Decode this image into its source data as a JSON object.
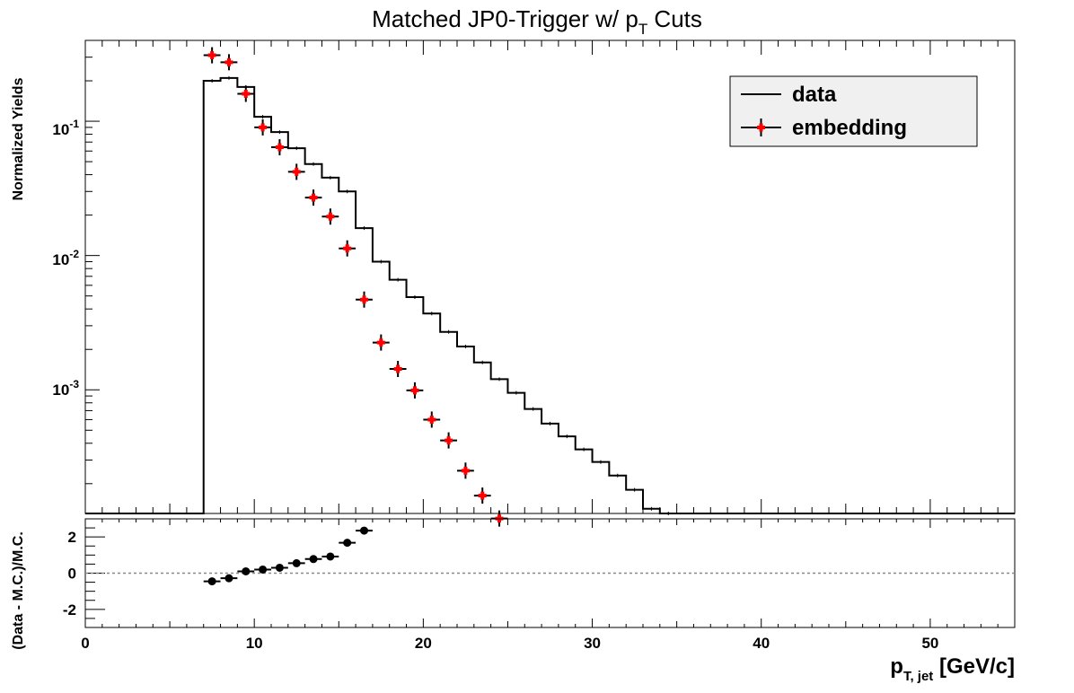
{
  "chart_data": [
    {
      "type": "line",
      "title": "Matched JP0-Trigger w/ p",
      "title_sub": "T",
      "title_tail": " Cuts",
      "ylabel": "Normalized Yields",
      "yscale": "log",
      "ylim": [
        0.00012,
        0.4
      ],
      "xlim": [
        0,
        55
      ],
      "ytick_labels": [
        {
          "value": 0.1,
          "base": "10",
          "exp": "-1"
        },
        {
          "value": 0.01,
          "base": "10",
          "exp": "-2"
        },
        {
          "value": 0.001,
          "base": "10",
          "exp": "-3"
        }
      ],
      "legend": {
        "placement": "top-right",
        "background": "#f0f0f0",
        "entries": [
          {
            "label": "data",
            "style": "line"
          },
          {
            "label": "embedding",
            "style": "marker"
          }
        ]
      },
      "series": [
        {
          "name": "data",
          "kind": "histogram",
          "color": "#000000",
          "bin_width": 1,
          "bin_low": [
            0,
            1,
            2,
            3,
            4,
            5,
            6,
            7,
            8,
            9,
            10,
            11,
            12,
            13,
            14,
            15,
            16,
            17,
            18,
            19,
            20,
            21,
            22,
            23,
            24,
            25,
            26,
            27,
            28,
            29,
            30,
            31,
            32,
            33,
            34,
            35,
            36,
            37,
            38,
            39,
            40,
            41,
            42,
            43,
            44,
            45,
            46,
            47,
            48,
            49,
            50,
            51,
            52,
            53,
            54
          ],
          "values": [
            0,
            0,
            0,
            0,
            0,
            0,
            0,
            0.2,
            0.21,
            0.18,
            0.108,
            0.083,
            0.063,
            0.048,
            0.038,
            0.03,
            0.016,
            0.009,
            0.0066,
            0.0049,
            0.0037,
            0.0027,
            0.0021,
            0.0016,
            0.0012,
            0.00095,
            0.00072,
            0.00056,
            0.00045,
            0.00036,
            0.00029,
            0.00023,
            0.00018,
            0.00013,
            0.00012,
            0,
            0,
            0,
            0,
            0,
            0,
            0,
            0,
            0,
            0,
            0,
            0,
            0,
            0,
            0,
            0,
            0,
            0,
            0,
            0
          ]
        },
        {
          "name": "embedding",
          "kind": "points",
          "color": "#ff0000",
          "x": [
            7.5,
            8.5,
            9.5,
            10.5,
            11.5,
            12.5,
            13.5,
            14.5,
            15.5,
            16.5,
            17.5,
            18.5,
            19.5,
            20.5,
            21.5,
            22.5,
            23.5,
            24.5
          ],
          "y": [
            0.31,
            0.275,
            0.16,
            0.09,
            0.064,
            0.042,
            0.027,
            0.0195,
            0.0113,
            0.0047,
            0.00225,
            0.00143,
            0.00099,
            0.0006,
            0.00042,
            0.00025,
            0.000163,
            0.00011
          ]
        }
      ]
    },
    {
      "type": "scatter",
      "ylabel": "(Data - M.C.)/M.C.",
      "xlabel_main": "p",
      "xlabel_sub": "T, jet",
      "xlabel_tail": " [GeV/c]",
      "xlim": [
        0,
        55
      ],
      "ylim": [
        -3,
        3
      ],
      "xtick_labels": [
        "0",
        "10",
        "20",
        "30",
        "40",
        "50"
      ],
      "xtick_values": [
        0,
        10,
        20,
        30,
        40,
        50
      ],
      "ytick_labels": [
        "2",
        "0",
        "-2"
      ],
      "ytick_values": [
        2,
        0,
        -2
      ],
      "reference_line": 0,
      "series": [
        {
          "kind": "points",
          "color": "#000000",
          "x": [
            7.5,
            8.5,
            9.5,
            10.5,
            11.5,
            12.5,
            13.5,
            14.5,
            15.5,
            16.5
          ],
          "y": [
            -0.45,
            -0.28,
            0.1,
            0.2,
            0.3,
            0.55,
            0.78,
            0.92,
            1.68,
            2.35
          ]
        }
      ]
    }
  ]
}
